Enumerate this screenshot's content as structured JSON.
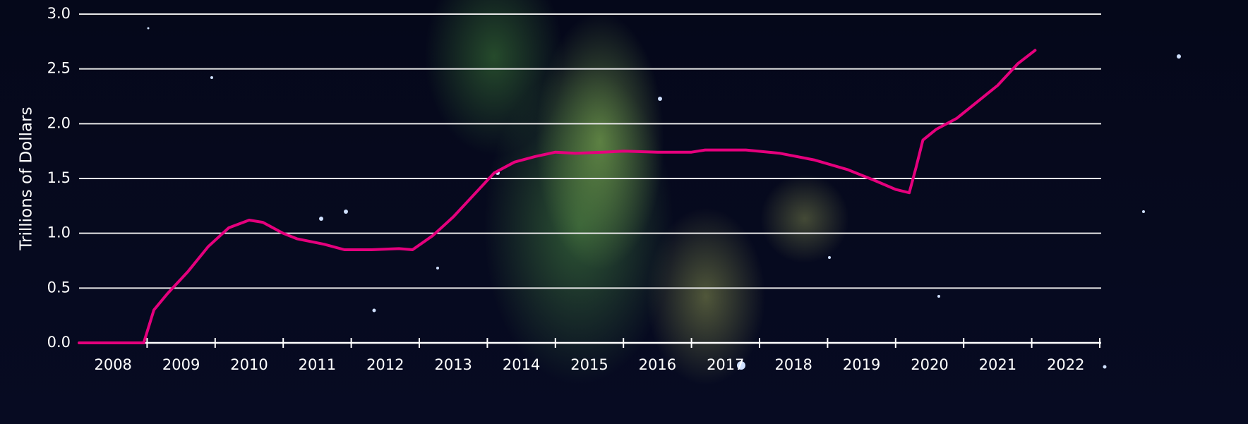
{
  "chart_data": {
    "type": "line",
    "ylabel": "Trillions of Dollars",
    "xlim": [
      2008,
      2023
    ],
    "xticks": [
      {
        "value": 2008.5,
        "label": "2008"
      },
      {
        "value": 2009.5,
        "label": "2009"
      },
      {
        "value": 2010.5,
        "label": "2010"
      },
      {
        "value": 2011.5,
        "label": "2011"
      },
      {
        "value": 2012.5,
        "label": "2012"
      },
      {
        "value": 2013.5,
        "label": "2013"
      },
      {
        "value": 2014.5,
        "label": "2014"
      },
      {
        "value": 2015.5,
        "label": "2015"
      },
      {
        "value": 2016.5,
        "label": "2016"
      },
      {
        "value": 2017.5,
        "label": "2017"
      },
      {
        "value": 2018.5,
        "label": "2018"
      },
      {
        "value": 2019.5,
        "label": "2019"
      },
      {
        "value": 2020.5,
        "label": "2020"
      },
      {
        "value": 2021.5,
        "label": "2021"
      },
      {
        "value": 2022.5,
        "label": "2022"
      }
    ],
    "xminorticks": [
      2009,
      2010,
      2011,
      2012,
      2013,
      2014,
      2015,
      2016,
      2017,
      2018,
      2019,
      2020,
      2021,
      2022,
      2023
    ],
    "ylim": [
      0,
      3
    ],
    "yticks": [
      {
        "value": 0,
        "label": "0.0"
      },
      0.5,
      {
        "value": 1,
        "label": "1.0"
      },
      1.5,
      {
        "value": 2,
        "label": "2.0"
      },
      2.5,
      {
        "value": 3,
        "label": "3.0"
      }
    ],
    "grid": true,
    "color": "#e5007d",
    "x": [
      2008.0,
      2008.95,
      2009.1,
      2009.3,
      2009.6,
      2009.9,
      2010.2,
      2010.5,
      2010.7,
      2011.0,
      2011.2,
      2011.6,
      2011.9,
      2012.3,
      2012.7,
      2012.9,
      2013.2,
      2013.5,
      2013.8,
      2014.1,
      2014.4,
      2014.7,
      2015.0,
      2015.3,
      2015.7,
      2016.0,
      2016.5,
      2017.0,
      2017.2,
      2017.8,
      2018.3,
      2018.8,
      2019.3,
      2019.7,
      2020.0,
      2020.2,
      2020.3,
      2020.4,
      2020.6,
      2020.9,
      2021.2,
      2021.5,
      2021.8,
      2022.05
    ],
    "values": [
      0,
      0,
      0.3,
      0.45,
      0.65,
      0.88,
      1.05,
      1.12,
      1.1,
      1.0,
      0.95,
      0.9,
      0.85,
      0.85,
      0.86,
      0.85,
      0.98,
      1.15,
      1.35,
      1.55,
      1.65,
      1.7,
      1.74,
      1.73,
      1.74,
      1.75,
      1.74,
      1.74,
      1.76,
      1.76,
      1.73,
      1.67,
      1.58,
      1.48,
      1.4,
      1.37,
      1.6,
      1.85,
      1.95,
      2.05,
      2.2,
      2.35,
      2.55,
      2.67
    ]
  }
}
